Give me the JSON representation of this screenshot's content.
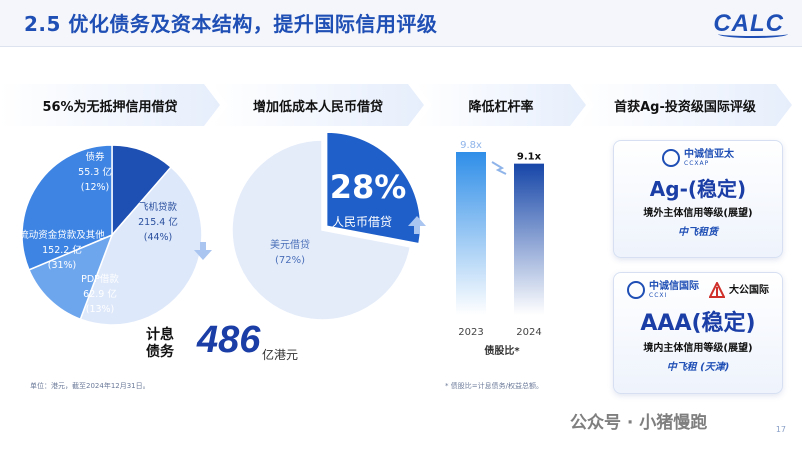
{
  "header": {
    "title": "2.5 优化债务及资本结构，提升国际信用评级",
    "logo": "CALC"
  },
  "sections": {
    "s1": "56%为无抵押信用借贷",
    "s2": "增加低成本人民币借贷",
    "s3": "降低杠杆率",
    "s4": "首获Ag-投资级国际评级"
  },
  "chart_data": [
    {
      "type": "pie",
      "unit": "亿",
      "slices": [
        {
          "name": "债券",
          "value": 55.3,
          "percent": "12%",
          "value_label": "55.3 亿",
          "percent_label": "(12%)",
          "color": "#1e4fb3"
        },
        {
          "name": "飞机贷款",
          "value": 215.4,
          "percent": "44%",
          "value_label": "215.4 亿",
          "percent_label": "(44%)",
          "color": "#dde8fa"
        },
        {
          "name": "PDP借款",
          "value": 62.9,
          "percent": "13%",
          "value_label": "62.9 亿",
          "percent_label": "(13%)",
          "color": "#6ea6ee"
        },
        {
          "name": "流动资金贷款及其他",
          "value": 152.2,
          "percent": "31%",
          "value_label": "152.2 亿",
          "percent_label": "(31%)",
          "color": "#3d84e3"
        }
      ]
    },
    {
      "type": "pie",
      "slices": [
        {
          "name": "人民币借贷",
          "value": 28,
          "label": "28%",
          "color": "#1f5fc9"
        },
        {
          "name": "美元借贷",
          "value": 72,
          "label": "(72%)",
          "color": "#e4ecfa"
        }
      ]
    },
    {
      "type": "bar",
      "categories": [
        "2023",
        "2024"
      ],
      "values": [
        9.8,
        9.1
      ],
      "value_labels": [
        "9.8x",
        "9.1x"
      ],
      "xlabel": "债股比*",
      "colors": [
        "#2f8ee8",
        "#1646a8"
      ]
    }
  ],
  "total": {
    "label_line1": "计息",
    "label_line2": "债务",
    "value": "486",
    "unit": "亿港元"
  },
  "notes": {
    "left": "单位：港元，截至2024年12月31日。",
    "right": "* 债股比=计息债务/权益总额。"
  },
  "ratings": [
    {
      "agency_cn": "中诚信亚太",
      "agency_en": "CCXAP",
      "rating": "Ag-(稳定)",
      "desc": "境外主体信用等级(展望)",
      "entity": "中飞租赁"
    },
    {
      "agency_cn": "中诚信国际",
      "agency_en": "CCXI",
      "agency2": "大公国际",
      "rating": "AAA(稳定)",
      "desc": "境内主体信用等级(展望)",
      "entity": "中飞租 (天津)"
    }
  ],
  "watermark": "公众号 · 小猪慢跑",
  "page_number": "17"
}
